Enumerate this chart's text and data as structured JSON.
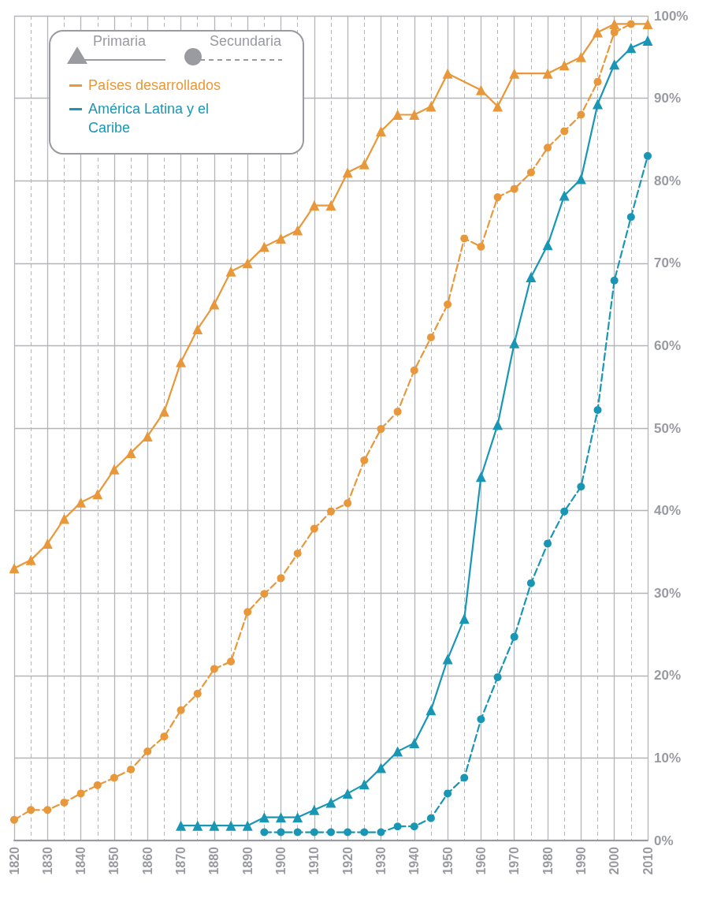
{
  "chart_data": {
    "type": "line",
    "x": [
      1820,
      1825,
      1830,
      1835,
      1840,
      1845,
      1850,
      1855,
      1860,
      1865,
      1870,
      1875,
      1880,
      1885,
      1890,
      1895,
      1900,
      1905,
      1910,
      1915,
      1920,
      1925,
      1930,
      1935,
      1940,
      1945,
      1950,
      1955,
      1960,
      1965,
      1970,
      1975,
      1980,
      1985,
      1990,
      1995,
      2000,
      2005,
      2010
    ],
    "series": [
      {
        "name": "Países desarrollados",
        "color": "#e8983a",
        "marker": "triangle",
        "line_style": "solid",
        "values": [
          33,
          34,
          36,
          39,
          41,
          42,
          45,
          47,
          49,
          52,
          58,
          62,
          65,
          69,
          70,
          72,
          73,
          74,
          77,
          77,
          81,
          82,
          86,
          88,
          88,
          89,
          93,
          null,
          91,
          89,
          93,
          null,
          93,
          94,
          95,
          98,
          99,
          null,
          99
        ]
      },
      {
        "color": "#e8983a",
        "marker": "circle",
        "line_style": "dashed",
        "values": [
          2.5,
          3.7,
          3.7,
          4.6,
          5.7,
          6.7,
          7.6,
          8.6,
          10.8,
          12.6,
          15.8,
          17.8,
          20.8,
          21.7,
          27.7,
          29.9,
          31.8,
          34.8,
          37.8,
          39.9,
          40.9,
          46.1,
          49.9,
          52,
          57,
          61,
          65,
          73,
          72,
          78,
          79,
          81,
          84,
          86,
          88,
          92,
          98,
          99,
          null
        ]
      },
      {
        "name": "América Latina y el Caribe",
        "color": "#1a96b5",
        "marker": "triangle",
        "line_style": "solid",
        "values": [
          null,
          null,
          null,
          null,
          null,
          null,
          null,
          null,
          null,
          null,
          1.8,
          1.8,
          1.8,
          1.8,
          1.8,
          2.8,
          2.8,
          2.8,
          3.7,
          4.6,
          5.7,
          6.8,
          8.8,
          10.8,
          11.8,
          15.8,
          22,
          26.9,
          44.1,
          50.4,
          60.3,
          68.3,
          72.2,
          78.2,
          80.2,
          89.3,
          94.1,
          96.1,
          97
        ]
      },
      {
        "color": "#1a96b5",
        "marker": "circle",
        "line_style": "dashed",
        "values": [
          null,
          null,
          null,
          null,
          null,
          null,
          null,
          null,
          null,
          null,
          null,
          null,
          null,
          null,
          null,
          1,
          1,
          1,
          1,
          1,
          1,
          1,
          1,
          1.7,
          1.7,
          2.7,
          5.7,
          7.6,
          14.7,
          19.8,
          24.7,
          31.2,
          36,
          39.9,
          42.9,
          52.2,
          67.9,
          75.6,
          83
        ]
      }
    ],
    "annotations": [
      "Primaria",
      "Secundaria"
    ],
    "xlim": [
      1820,
      2010
    ],
    "xticks": [
      1820,
      1830,
      1840,
      1850,
      1860,
      1870,
      1880,
      1890,
      1900,
      1910,
      1920,
      1930,
      1940,
      1950,
      1960,
      1970,
      1980,
      1990,
      2000,
      2010
    ],
    "ylim": [
      0,
      100
    ],
    "yticks": [
      {
        "value": 0,
        "label": "0%"
      },
      {
        "value": 10,
        "label": "10%"
      },
      {
        "value": 20,
        "label": "20%"
      },
      {
        "value": 30,
        "label": "30%"
      },
      {
        "value": 40,
        "label": "40%"
      },
      {
        "value": 50,
        "label": "50%"
      },
      {
        "value": 60,
        "label": "60%"
      },
      {
        "value": 70,
        "label": "70%"
      },
      {
        "value": 80,
        "label": "80%"
      },
      {
        "value": 90,
        "label": "90%"
      },
      {
        "value": 100,
        "label": "100%"
      }
    ],
    "grid": true,
    "legend": "top left"
  }
}
